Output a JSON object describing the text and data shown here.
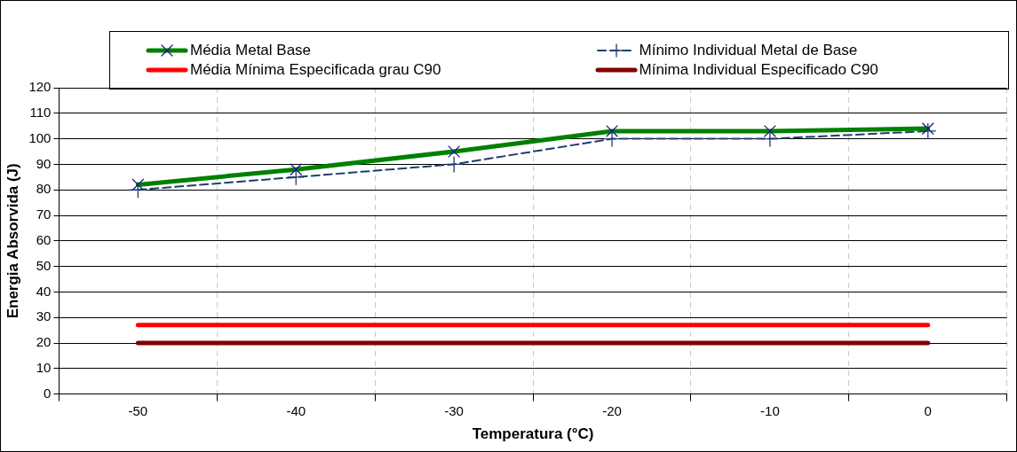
{
  "chart_data": {
    "type": "line",
    "xlabel": "Temperatura (°C)",
    "ylabel": "Energia Absorvida (J)",
    "categories": [
      "-50",
      "-40",
      "-30",
      "-20",
      "-10",
      "0"
    ],
    "ylim": [
      0,
      120
    ],
    "yticks": [
      0,
      10,
      20,
      30,
      40,
      50,
      60,
      70,
      80,
      90,
      100,
      110,
      120
    ],
    "grid": true,
    "legend": "top",
    "series": [
      {
        "name": "Média Metal Base",
        "color": "#008000",
        "values": [
          82,
          88,
          95,
          103,
          103,
          104
        ],
        "marker": "cross",
        "line_style": "solid"
      },
      {
        "name": "Mínimo Individual Metal de Base",
        "color": "#1f3d6e",
        "values": [
          80,
          85,
          90,
          100,
          100,
          103
        ],
        "marker": "plus",
        "line_style": "dashed"
      },
      {
        "name": "Média Mínima Especificada grau C90",
        "color": "#ff0000",
        "values": [
          27,
          27,
          27,
          27,
          27,
          27
        ],
        "marker": "none",
        "line_style": "solid"
      },
      {
        "name": "Mínima Individual Especificado C90",
        "color": "#800000",
        "values": [
          20,
          20,
          20,
          20,
          20,
          20
        ],
        "marker": "none",
        "line_style": "solid"
      }
    ]
  }
}
